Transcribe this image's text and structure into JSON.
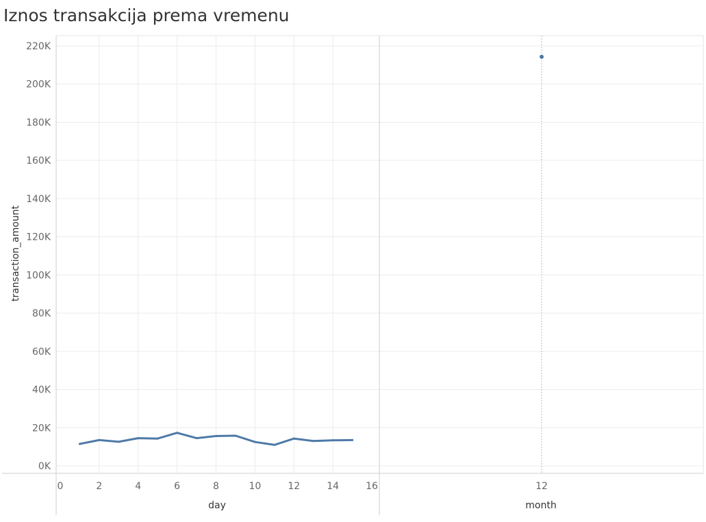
{
  "title": "Iznos transakcija prema vremenu",
  "colors": {
    "series": "#4e79a7",
    "grid": "#ececec",
    "axis": "#cfcfcf"
  },
  "chart_data": [
    {
      "type": "line",
      "xlabel": "day",
      "ylabel": "transaction_amount",
      "x": [
        1,
        2,
        3,
        4,
        5,
        6,
        7,
        8,
        9,
        10,
        11,
        12,
        13,
        14,
        15
      ],
      "series": [
        {
          "values": [
            11500,
            13500,
            12600,
            14500,
            14300,
            17300,
            14500,
            15600,
            15800,
            12500,
            11000,
            14300,
            13000,
            13400,
            13500
          ]
        }
      ],
      "xlim": [
        0,
        16
      ],
      "xticks": [
        0,
        2,
        4,
        6,
        8,
        10,
        12,
        14,
        16
      ],
      "ylim": [
        0,
        220000
      ],
      "yticks": [
        0,
        20000,
        40000,
        60000,
        80000,
        100000,
        120000,
        140000,
        160000,
        180000,
        200000,
        220000
      ],
      "ytick_labels": [
        "0K",
        "20K",
        "40K",
        "60K",
        "80K",
        "100K",
        "120K",
        "140K",
        "160K",
        "180K",
        "200K",
        "220K"
      ],
      "grid": true
    },
    {
      "type": "scatter",
      "xlabel": "month",
      "x": [
        12
      ],
      "xtick_labels": [
        "12"
      ],
      "series": [
        {
          "values": [
            214300
          ]
        }
      ],
      "ylim": [
        0,
        220000
      ],
      "grid": true
    }
  ]
}
